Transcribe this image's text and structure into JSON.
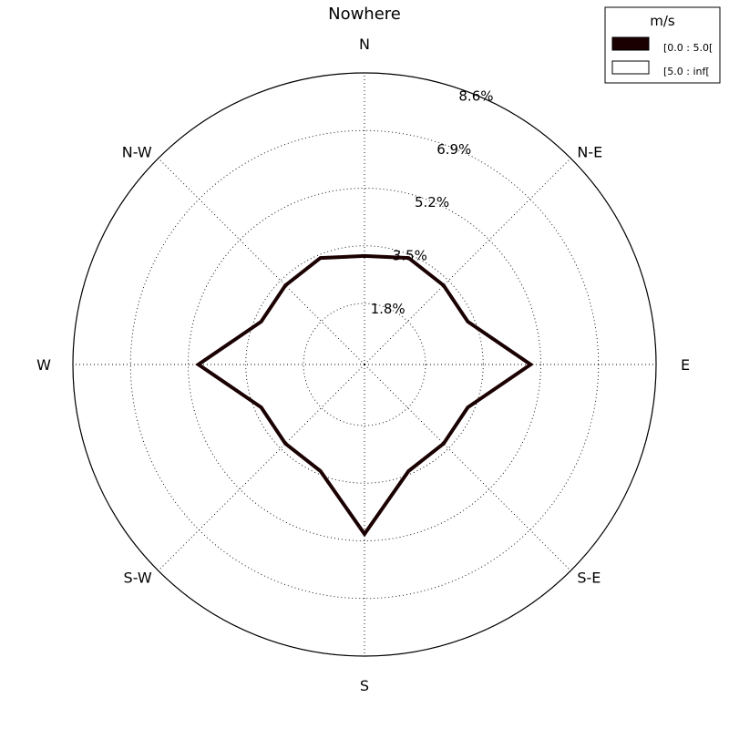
{
  "chart_data": {
    "type": "radar",
    "title": "Nowhere",
    "directions": [
      "N",
      "N-E",
      "E",
      "S-E",
      "S",
      "S-W",
      "W",
      "N-W"
    ],
    "radial_ticks": [
      1.8,
      3.5,
      5.2,
      6.9,
      8.6
    ],
    "radial_tick_labels": [
      "1.8%",
      "3.5%",
      "5.2%",
      "6.9%",
      "8.6%"
    ],
    "rmax": 8.6,
    "grid": true,
    "legend": {
      "title": "m/s",
      "placement": "top-right",
      "entries": [
        {
          "label": "[0.0 : 5.0[",
          "color": "#1a0000"
        },
        {
          "label": "[5.0 : inf[",
          "color": "#ffffff"
        }
      ]
    },
    "series": [
      {
        "name": "[0.0 : 5.0[",
        "color": "#1a0000",
        "theta_deg": [
          0,
          22.5,
          45,
          67.5,
          90,
          112.5,
          135,
          157.5,
          180,
          202.5,
          225,
          247.5,
          270,
          292.5,
          315,
          337.5
        ],
        "values": [
          3.2,
          3.4,
          3.3,
          3.3,
          4.9,
          3.3,
          3.3,
          3.4,
          5.0,
          3.4,
          3.3,
          3.3,
          4.9,
          3.3,
          3.3,
          3.4
        ]
      }
    ]
  }
}
